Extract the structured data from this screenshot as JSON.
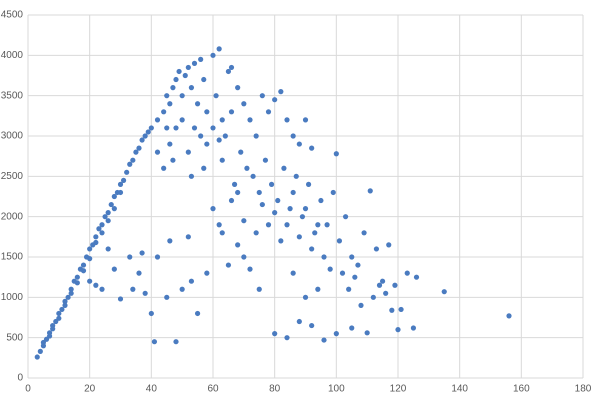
{
  "chart_data": {
    "type": "scatter",
    "color": "#4a7bc0",
    "grid": true,
    "xlim": [
      0,
      180
    ],
    "xticks": [
      0,
      20,
      40,
      60,
      80,
      100,
      120,
      140,
      160,
      180
    ],
    "ylim": [
      0,
      4500
    ],
    "yticks": [
      0,
      500,
      1000,
      1500,
      2000,
      2500,
      3000,
      3500,
      4000,
      4500
    ],
    "x": [
      3,
      4,
      5,
      5,
      6,
      7,
      7,
      8,
      8,
      9,
      10,
      10,
      11,
      12,
      12,
      13,
      14,
      14,
      15,
      16,
      16,
      17,
      18,
      18,
      19,
      20,
      20,
      21,
      22,
      22,
      23,
      24,
      24,
      25,
      26,
      26,
      27,
      28,
      28,
      29,
      30,
      30,
      31,
      32,
      33,
      34,
      35,
      36,
      37,
      38,
      39,
      40,
      42,
      44,
      45,
      46,
      47,
      48,
      49,
      50,
      51,
      52,
      53,
      54,
      55,
      56,
      57,
      58,
      60,
      62,
      61,
      63,
      65,
      66,
      64,
      42,
      44,
      46,
      48,
      50,
      52,
      54,
      56,
      58,
      60,
      62,
      66,
      68,
      70,
      72,
      74,
      76,
      78,
      80,
      82,
      84,
      86,
      88,
      90,
      92,
      100,
      45,
      47,
      53,
      57,
      63,
      67,
      69,
      71,
      73,
      75,
      77,
      79,
      81,
      83,
      85,
      87,
      89,
      91,
      93,
      95,
      97,
      99,
      101,
      103,
      105,
      107,
      109,
      111,
      113,
      115,
      117,
      119,
      121,
      123,
      126,
      135,
      156,
      118,
      120,
      125,
      110,
      105,
      100,
      96,
      92,
      88,
      84,
      80,
      75,
      72,
      70,
      68,
      65,
      62,
      58,
      55,
      50,
      48,
      41,
      40,
      38,
      36,
      33,
      30,
      28,
      26,
      24,
      22,
      20,
      34,
      37,
      42,
      45,
      46,
      52,
      53,
      60,
      63,
      66,
      78,
      82,
      86,
      90,
      94,
      98,
      102,
      104,
      108,
      112,
      114,
      116,
      106,
      96,
      92,
      88,
      84,
      80,
      76,
      74,
      70,
      68,
      86,
      90,
      94
    ],
    "values": [
      260,
      330,
      400,
      440,
      480,
      560,
      520,
      650,
      610,
      700,
      800,
      740,
      850,
      950,
      900,
      1000,
      1100,
      1050,
      1200,
      1250,
      1180,
      1350,
      1400,
      1330,
      1500,
      1600,
      1480,
      1650,
      1750,
      1680,
      1850,
      1900,
      1800,
      2000,
      2050,
      1950,
      2150,
      2250,
      2100,
      2300,
      2400,
      2300,
      2450,
      2550,
      2650,
      2700,
      2800,
      2850,
      2950,
      3000,
      3050,
      3100,
      3200,
      3300,
      3500,
      3400,
      3600,
      3700,
      3800,
      3500,
      3750,
      3850,
      3600,
      3900,
      3400,
      3950,
      3700,
      3300,
      4000,
      4080,
      3500,
      3200,
      3800,
      3850,
      3000,
      2800,
      2600,
      2900,
      3100,
      3200,
      2800,
      3100,
      3000,
      2900,
      3100,
      2950,
      3300,
      3600,
      3400,
      3200,
      3000,
      3500,
      3300,
      3450,
      3550,
      3200,
      3000,
      2900,
      3200,
      2850,
      2780,
      3100,
      2700,
      2500,
      2600,
      2700,
      2400,
      2800,
      2600,
      2500,
      2300,
      2700,
      2400,
      2200,
      2600,
      2100,
      2500,
      2000,
      2400,
      1800,
      2200,
      1900,
      2300,
      1700,
      2000,
      1500,
      1400,
      1800,
      2320,
      1600,
      1200,
      1650,
      1150,
      850,
      1300,
      1250,
      1070,
      770,
      840,
      600,
      620,
      560,
      620,
      550,
      470,
      650,
      700,
      500,
      550,
      1100,
      1350,
      1500,
      1650,
      1400,
      1900,
      1300,
      800,
      1100,
      450,
      450,
      800,
      1050,
      1300,
      1500,
      980,
      1350,
      1600,
      1100,
      1150,
      1200,
      1100,
      1550,
      1500,
      1000,
      1700,
      1750,
      1200,
      2100,
      1800,
      2200,
      1900,
      1700,
      1300,
      1000,
      1100,
      1350,
      1300,
      1100,
      900,
      1000,
      1150,
      1050,
      1250,
      1500,
      1600,
      1750,
      1900,
      2050,
      2150,
      1800,
      1950,
      2300,
      2300,
      2100,
      1900
    ]
  }
}
